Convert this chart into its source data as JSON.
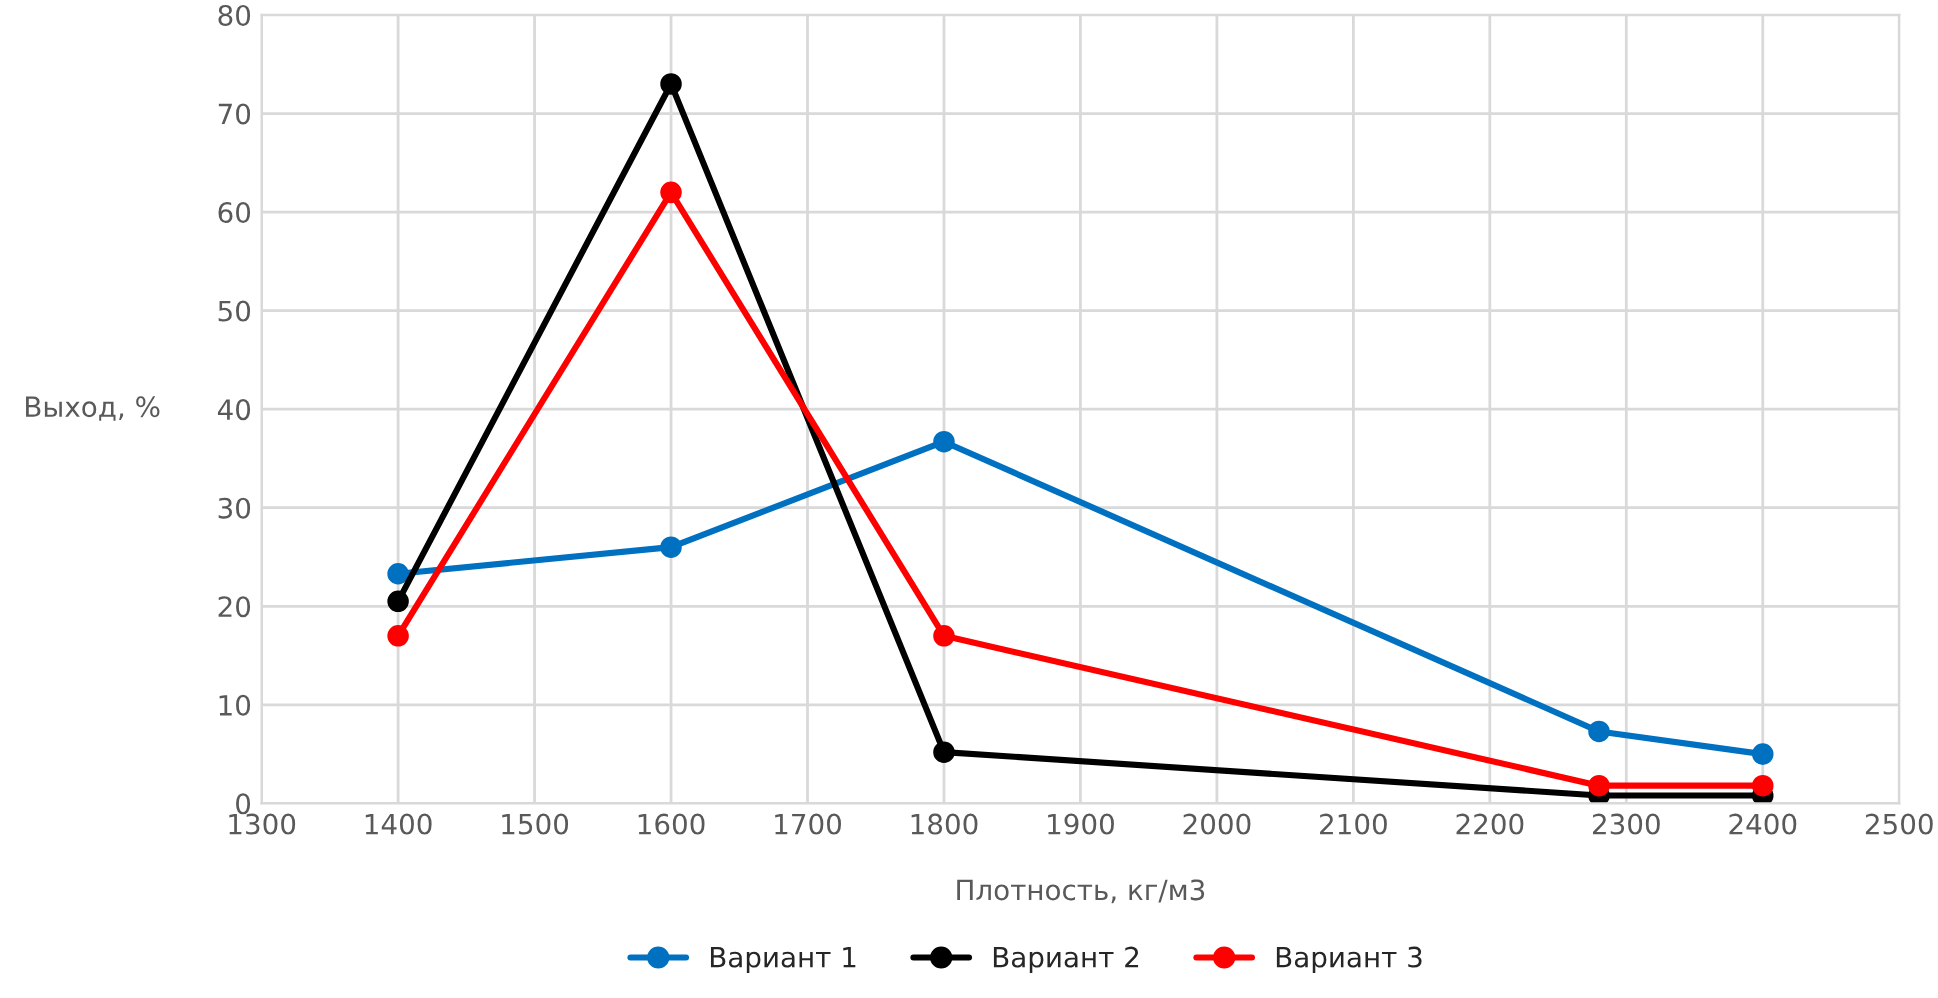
{
  "chart_data": {
    "type": "line",
    "xlabel": "Плотность, кг/м3",
    "ylabel": "Выход, %",
    "x": [
      1400,
      1600,
      1800,
      2280,
      2400
    ],
    "series": [
      {
        "name": "Вариант 1",
        "color": "#0070c0",
        "values": [
          23.3,
          26,
          36.7,
          7.3,
          5
        ]
      },
      {
        "name": "Вариант 2",
        "color": "#000000",
        "values": [
          20.5,
          73,
          5.2,
          0.8,
          0.8
        ]
      },
      {
        "name": "Вариант 3",
        "color": "#ff0000",
        "values": [
          17,
          62,
          17,
          1.8,
          1.8
        ]
      }
    ],
    "xlim": [
      1300,
      2500
    ],
    "xticks": [
      1300,
      1400,
      1500,
      1600,
      1700,
      1800,
      1900,
      2000,
      2100,
      2200,
      2300,
      2400,
      2500
    ],
    "ylim": [
      0,
      80
    ],
    "yticks": [
      0,
      10,
      20,
      30,
      40,
      50,
      60,
      70,
      80
    ],
    "grid": true,
    "legend": "bottom",
    "marker": "circle",
    "line_style": "solid"
  }
}
